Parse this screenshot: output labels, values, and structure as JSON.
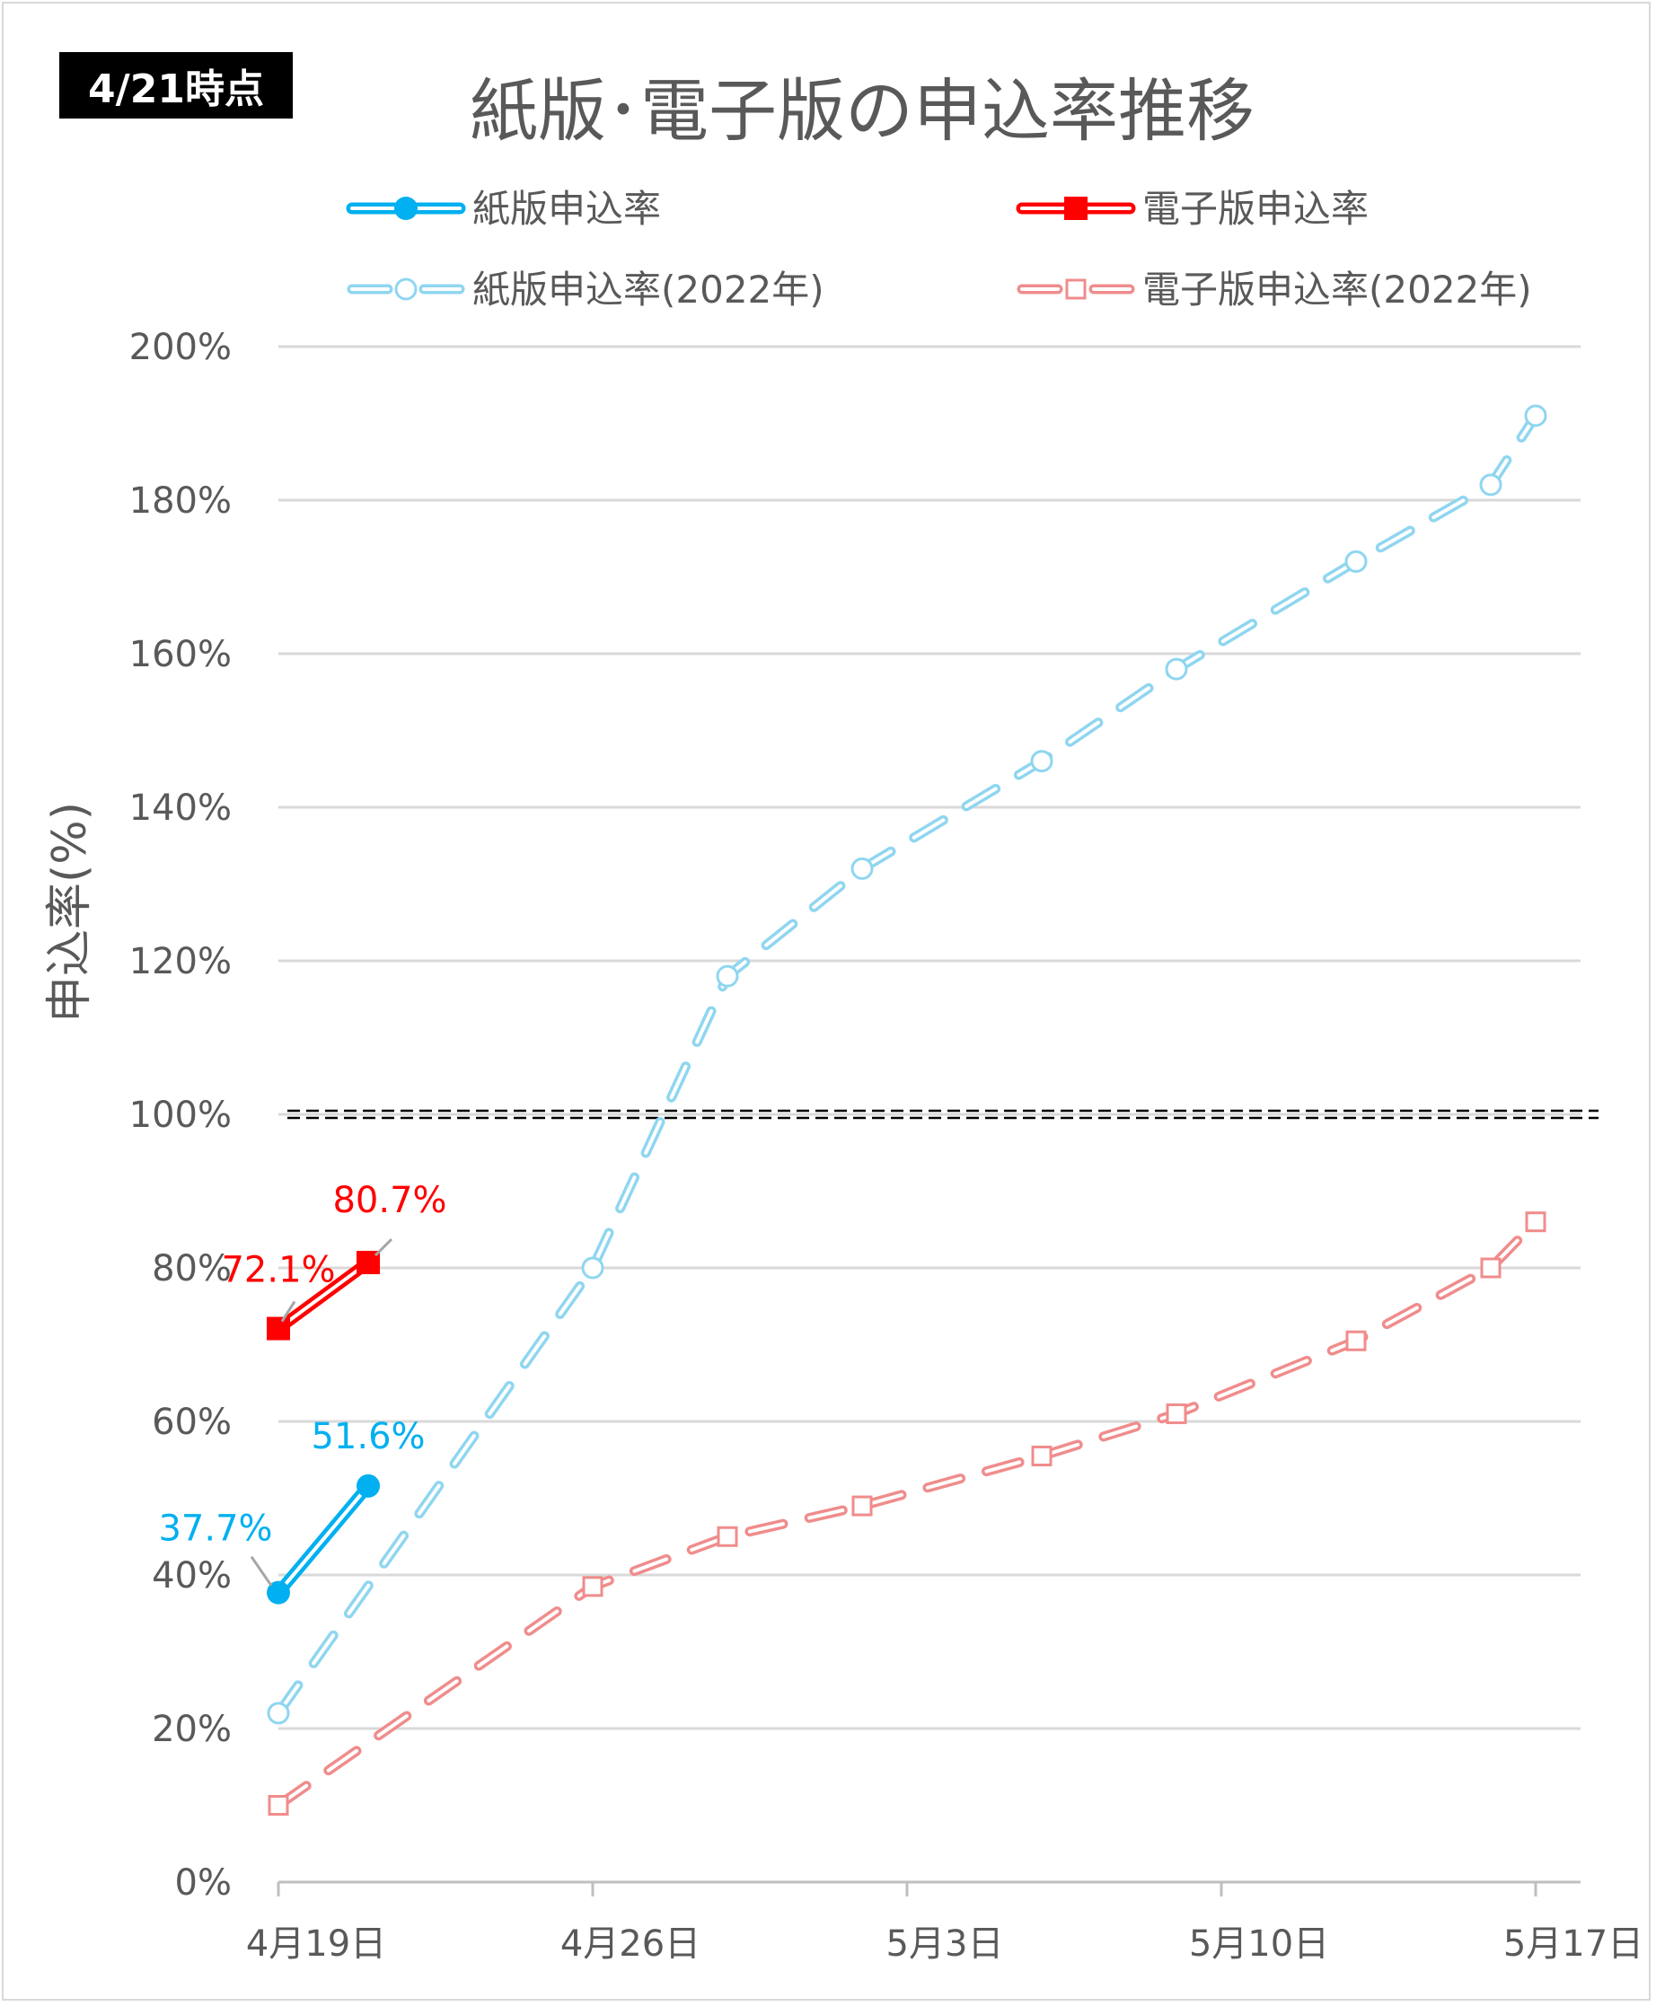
{
  "badge": "4/21時点",
  "chart_data": {
    "type": "line",
    "title": "紙版･電子版の申込率推移",
    "ylabel": "申込率(%)",
    "xlabel": "",
    "x_ticks": [
      "4月19日",
      "4月26日",
      "5月3日",
      "5月10日",
      "5月17日"
    ],
    "x_range": [
      "2023-04-19",
      "2023-05-18"
    ],
    "y_ticks": [
      "0%",
      "20%",
      "40%",
      "60%",
      "80%",
      "100%",
      "120%",
      "140%",
      "160%",
      "180%",
      "200%"
    ],
    "ylim": [
      0,
      200
    ],
    "grid": true,
    "legend_position": "top",
    "reference_line": {
      "y": 100,
      "style": "double-dashed",
      "color": "#000000"
    },
    "series": [
      {
        "name": "紙版申込率",
        "color": "#00b0f0",
        "marker": "filled-circle",
        "style": "solid-double",
        "points": [
          {
            "x": "2023-04-19",
            "y": 37.7
          },
          {
            "x": "2023-04-21",
            "y": 51.6
          }
        ],
        "labels": [
          "37.7%",
          "51.6%"
        ]
      },
      {
        "name": "電子版申込率",
        "color": "#ff0000",
        "marker": "filled-square",
        "style": "solid-double",
        "points": [
          {
            "x": "2023-04-19",
            "y": 72.1
          },
          {
            "x": "2023-04-21",
            "y": 80.7
          }
        ],
        "labels": [
          "72.1%",
          "80.7%"
        ]
      },
      {
        "name": "紙版申込率(2022年)",
        "color": "#8fd6f0",
        "marker": "open-circle",
        "style": "dashed-double",
        "points": [
          {
            "x": "2023-04-19",
            "y": 22
          },
          {
            "x": "2023-04-26",
            "y": 80
          },
          {
            "x": "2023-04-29",
            "y": 118
          },
          {
            "x": "2023-05-02",
            "y": 132
          },
          {
            "x": "2023-05-06",
            "y": 146
          },
          {
            "x": "2023-05-09",
            "y": 158
          },
          {
            "x": "2023-05-13",
            "y": 172
          },
          {
            "x": "2023-05-16",
            "y": 182
          },
          {
            "x": "2023-05-17",
            "y": 191
          }
        ]
      },
      {
        "name": "電子版申込率(2022年)",
        "color": "#f08c8c",
        "marker": "open-square",
        "style": "dashed-double",
        "points": [
          {
            "x": "2023-04-19",
            "y": 10
          },
          {
            "x": "2023-04-26",
            "y": 38.5
          },
          {
            "x": "2023-04-29",
            "y": 45
          },
          {
            "x": "2023-05-02",
            "y": 49
          },
          {
            "x": "2023-05-06",
            "y": 55.5
          },
          {
            "x": "2023-05-09",
            "y": 61
          },
          {
            "x": "2023-05-13",
            "y": 70.5
          },
          {
            "x": "2023-05-16",
            "y": 80
          },
          {
            "x": "2023-05-17",
            "y": 86
          }
        ]
      }
    ]
  }
}
